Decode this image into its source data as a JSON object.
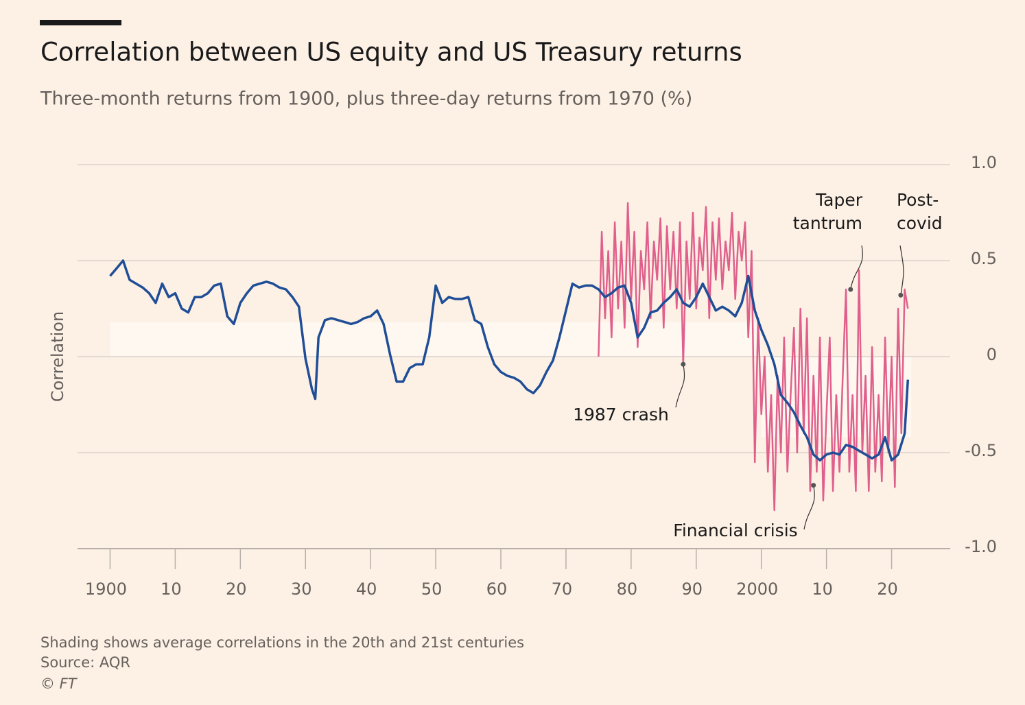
{
  "chart_data": {
    "type": "line",
    "title": "Correlation between US equity and US Treasury returns",
    "subtitle": "Three-month returns from 1900, plus three-day returns from 1970 (%)",
    "y_label": "Correlation",
    "xlim": [
      1895,
      2029
    ],
    "xticks": [
      1900,
      {
        "value": 1910,
        "label": "10"
      },
      {
        "value": 1920,
        "label": "20"
      },
      {
        "value": 1930,
        "label": "30"
      },
      {
        "value": 1940,
        "label": "40"
      },
      {
        "value": 1950,
        "label": "50"
      },
      {
        "value": 1960,
        "label": "60"
      },
      {
        "value": 1970,
        "label": "70"
      },
      {
        "value": 1980,
        "label": "80"
      },
      {
        "value": 1990,
        "label": "90"
      },
      2000,
      {
        "value": 2010,
        "label": "10"
      },
      {
        "value": 2020,
        "label": "20"
      }
    ],
    "ylim": [
      -1,
      1
    ],
    "yticks": [
      {
        "value": 1,
        "label": "1.0"
      },
      0.5,
      0,
      -0.5,
      {
        "value": -1,
        "label": "-1.0"
      }
    ],
    "grid": true,
    "shading": [
      {
        "x": [
          1900,
          2000
        ],
        "value": 0.18,
        "color": "#fff8f2"
      },
      {
        "x": [
          2000,
          2023
        ],
        "value": -0.42,
        "color": "#fff8f2"
      }
    ],
    "series": [
      {
        "color": "#e0608c",
        "x": [
          1975,
          1975.5,
          1976,
          1976.5,
          1977,
          1977.5,
          1978,
          1978.5,
          1979,
          1979.5,
          1980,
          1980.5,
          1981,
          1981.5,
          1982,
          1982.5,
          1983,
          1983.5,
          1984,
          1984.5,
          1985,
          1985.5,
          1986,
          1986.5,
          1987,
          1987.5,
          1988,
          1988.5,
          1989,
          1989.5,
          1990,
          1990.5,
          1991,
          1991.5,
          1992,
          1992.5,
          1993,
          1993.5,
          1994,
          1994.5,
          1995,
          1995.5,
          1996,
          1996.5,
          1997,
          1997.5,
          1998,
          1998.5,
          1999,
          1999.5,
          2000,
          2000.5,
          2001,
          2001.5,
          2002,
          2002.5,
          2003,
          2003.5,
          2004,
          2004.5,
          2005,
          2005.5,
          2006,
          2006.5,
          2007,
          2007.5,
          2008,
          2008.5,
          2009,
          2009.5,
          2010,
          2010.5,
          2011,
          2011.5,
          2012,
          2012.5,
          2013,
          2013.5,
          2014,
          2014.5,
          2015,
          2015.5,
          2016,
          2016.5,
          2017,
          2017.5,
          2018,
          2018.5,
          2019,
          2019.5,
          2020,
          2020.5,
          2021,
          2021.5,
          2022,
          2022.5
        ],
        "values": [
          0.0,
          0.65,
          0.2,
          0.55,
          0.1,
          0.7,
          0.25,
          0.6,
          0.15,
          0.8,
          0.3,
          0.65,
          0.05,
          0.55,
          0.35,
          0.7,
          0.2,
          0.6,
          0.4,
          0.72,
          0.15,
          0.68,
          0.35,
          0.65,
          0.25,
          0.7,
          -0.04,
          0.6,
          0.3,
          0.75,
          0.25,
          0.62,
          0.45,
          0.78,
          0.2,
          0.7,
          0.4,
          0.72,
          0.35,
          0.6,
          0.45,
          0.75,
          0.3,
          0.65,
          0.5,
          0.7,
          0.1,
          0.55,
          -0.55,
          0.2,
          -0.3,
          0.0,
          -0.6,
          -0.2,
          -0.8,
          -0.1,
          -0.5,
          0.1,
          -0.6,
          -0.2,
          0.15,
          -0.5,
          0.25,
          -0.4,
          0.2,
          -0.7,
          -0.1,
          -0.6,
          0.1,
          -0.75,
          -0.3,
          0.1,
          -0.7,
          -0.2,
          -0.6,
          -0.1,
          0.35,
          -0.6,
          -0.2,
          -0.7,
          0.45,
          -0.5,
          -0.1,
          -0.7,
          0.05,
          -0.6,
          -0.2,
          -0.65,
          0.1,
          -0.5,
          0.0,
          -0.68,
          0.25,
          -0.4,
          0.35,
          0.25
        ]
      },
      {
        "color": "#1f4e96",
        "x": [
          1900,
          1901,
          1902,
          1903,
          1904,
          1905,
          1906,
          1907,
          1908,
          1909,
          1910,
          1911,
          1912,
          1913,
          1914,
          1915,
          1916,
          1917,
          1918,
          1919,
          1920,
          1921,
          1922,
          1923,
          1924,
          1925,
          1926,
          1927,
          1928,
          1929,
          1930,
          1931,
          1931.5,
          1932,
          1933,
          1934,
          1935,
          1936,
          1937,
          1938,
          1939,
          1940,
          1941,
          1942,
          1943,
          1944,
          1945,
          1946,
          1947,
          1948,
          1949,
          1950,
          1951,
          1952,
          1953,
          1954,
          1955,
          1956,
          1957,
          1958,
          1959,
          1960,
          1961,
          1962,
          1963,
          1964,
          1965,
          1966,
          1967,
          1968,
          1969,
          1970,
          1971,
          1972,
          1973,
          1974,
          1975,
          1976,
          1977,
          1978,
          1979,
          1980,
          1981,
          1982,
          1983,
          1984,
          1985,
          1986,
          1987,
          1988,
          1989,
          1990,
          1991,
          1992,
          1993,
          1994,
          1995,
          1996,
          1997,
          1998,
          1999,
          2000,
          2001,
          2002,
          2003,
          2004,
          2005,
          2006,
          2007,
          2008,
          2009,
          2010,
          2011,
          2012,
          2013,
          2014,
          2015,
          2016,
          2017,
          2018,
          2019,
          2020,
          2021,
          2022,
          2022.5
        ],
        "values": [
          0.42,
          0.46,
          0.5,
          0.4,
          0.38,
          0.36,
          0.33,
          0.28,
          0.38,
          0.31,
          0.33,
          0.25,
          0.23,
          0.31,
          0.31,
          0.33,
          0.37,
          0.38,
          0.21,
          0.17,
          0.28,
          0.33,
          0.37,
          0.38,
          0.39,
          0.38,
          0.36,
          0.35,
          0.31,
          0.26,
          -0.01,
          -0.17,
          -0.22,
          0.1,
          0.19,
          0.2,
          0.19,
          0.18,
          0.17,
          0.18,
          0.2,
          0.21,
          0.24,
          0.17,
          0.01,
          -0.13,
          -0.13,
          -0.06,
          -0.04,
          -0.04,
          0.1,
          0.37,
          0.28,
          0.31,
          0.3,
          0.3,
          0.31,
          0.19,
          0.17,
          0.05,
          -0.04,
          -0.08,
          -0.1,
          -0.11,
          -0.13,
          -0.17,
          -0.19,
          -0.15,
          -0.08,
          -0.02,
          0.1,
          0.24,
          0.38,
          0.36,
          0.37,
          0.37,
          0.35,
          0.31,
          0.33,
          0.36,
          0.37,
          0.28,
          0.1,
          0.15,
          0.23,
          0.24,
          0.28,
          0.31,
          0.35,
          0.28,
          0.26,
          0.31,
          0.38,
          0.31,
          0.24,
          0.26,
          0.24,
          0.21,
          0.28,
          0.42,
          0.24,
          0.14,
          0.06,
          -0.04,
          -0.2,
          -0.24,
          -0.29,
          -0.36,
          -0.42,
          -0.51,
          -0.54,
          -0.51,
          -0.5,
          -0.51,
          -0.46,
          -0.47,
          -0.49,
          -0.51,
          -0.53,
          -0.51,
          -0.42,
          -0.54,
          -0.51,
          -0.4,
          -0.12
        ]
      }
    ],
    "annotations": [
      {
        "label": [
          "1987 crash"
        ],
        "x": 1988,
        "y": -0.04
      },
      {
        "label": [
          "Financial crisis"
        ],
        "x": 2008,
        "y": -0.67
      },
      {
        "label": [
          "Taper",
          "tantrum"
        ],
        "x": 2013.7,
        "y": 0.35
      },
      {
        "label": [
          "Post-",
          "covid"
        ],
        "x": 2021.4,
        "y": 0.32
      }
    ],
    "note": "Shading shows average correlations in the 20th and 21st centuries",
    "source": "Source: AQR",
    "copyright": "© FT"
  }
}
